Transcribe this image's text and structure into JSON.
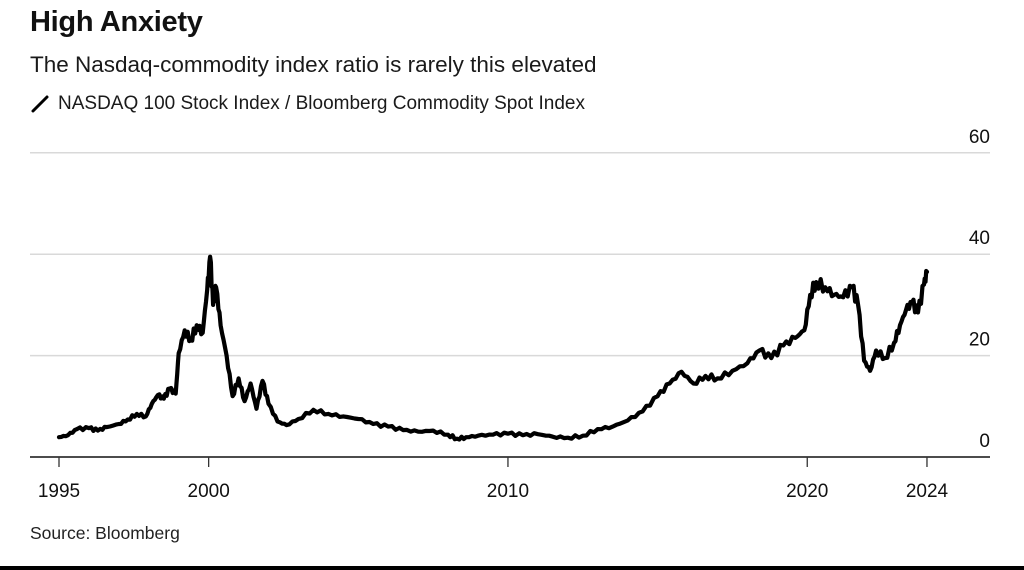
{
  "header": {
    "title": "High Anxiety",
    "subtitle": "The Nasdaq-commodity index ratio is rarely this elevated",
    "legend_icon": "diagonal-line-icon",
    "legend_label": "NASDAQ 100 Stock Index / Bloomberg Commodity Spot Index"
  },
  "footer": {
    "source": "Source: Bloomberg"
  },
  "colors": {
    "line": "#000000",
    "grid": "#d9d9d9",
    "axis": "#333333",
    "text": "#111111"
  },
  "chart_data": {
    "type": "line",
    "title": "High Anxiety",
    "subtitle": "The Nasdaq-commodity index ratio is rarely this elevated",
    "xlabel": "",
    "ylabel": "",
    "xlim": [
      1994.5,
      2026.2
    ],
    "ylim": [
      0,
      60
    ],
    "y_ticks": [
      0,
      20,
      40,
      60
    ],
    "y_tick_labels": [
      "0",
      "20",
      "40",
      "60"
    ],
    "y_axis_side": "right",
    "x_ticks": [
      1995,
      2000,
      2010,
      2020,
      2024
    ],
    "x_tick_labels": [
      "1995",
      "2000",
      "2010",
      "2020",
      "2024"
    ],
    "grid": true,
    "legend": "top-left",
    "series": [
      {
        "name": "NASDAQ 100 Stock Index / Bloomberg Commodity Spot Index",
        "x": [
          1995.0,
          1995.3,
          1995.6,
          1996.0,
          1996.3,
          1996.6,
          1997.0,
          1997.3,
          1997.6,
          1997.9,
          1998.1,
          1998.3,
          1998.5,
          1998.7,
          1998.9,
          1999.0,
          1999.2,
          1999.4,
          1999.6,
          1999.8,
          1999.95,
          2000.05,
          2000.15,
          2000.25,
          2000.4,
          2000.6,
          2000.8,
          2001.0,
          2001.2,
          2001.4,
          2001.6,
          2001.8,
          2002.0,
          2002.3,
          2002.6,
          2003.0,
          2003.5,
          2004.0,
          2004.5,
          2005.0,
          2005.5,
          2006.0,
          2006.5,
          2007.0,
          2007.5,
          2008.0,
          2008.3,
          2008.6,
          2009.0,
          2009.5,
          2010.0,
          2010.5,
          2011.0,
          2011.5,
          2012.0,
          2012.5,
          2013.0,
          2013.5,
          2014.0,
          2014.5,
          2015.0,
          2015.4,
          2015.8,
          2016.2,
          2016.6,
          2017.0,
          2017.5,
          2018.0,
          2018.4,
          2018.8,
          2019.2,
          2019.6,
          2019.9,
          2020.1,
          2020.3,
          2020.6,
          2020.9,
          2021.2,
          2021.5,
          2021.7,
          2021.9,
          2022.1,
          2022.3,
          2022.6,
          2022.9,
          2023.1,
          2023.3,
          2023.5,
          2023.7,
          2023.9,
          2024.0
        ],
        "values": [
          3.9,
          4.3,
          5.5,
          5.7,
          5.2,
          5.9,
          6.5,
          7.4,
          8.5,
          8.0,
          10.5,
          12.2,
          11.5,
          13.5,
          12.5,
          20.5,
          25.0,
          23.0,
          26.0,
          24.5,
          33.0,
          39.5,
          30.0,
          33.5,
          26.0,
          20.0,
          12.0,
          15.5,
          11.0,
          14.5,
          9.5,
          15.0,
          10.5,
          7.0,
          6.3,
          7.5,
          9.3,
          8.5,
          8.0,
          7.5,
          6.5,
          6.0,
          5.3,
          5.0,
          5.2,
          4.4,
          3.6,
          3.9,
          4.2,
          4.4,
          4.6,
          4.3,
          4.5,
          4.0,
          3.8,
          4.2,
          5.5,
          6.0,
          7.2,
          9.0,
          12.0,
          14.5,
          16.8,
          14.5,
          16.0,
          15.5,
          17.0,
          18.5,
          21.0,
          19.5,
          22.0,
          23.5,
          25.0,
          32.0,
          34.5,
          33.5,
          32.0,
          31.5,
          33.5,
          30.0,
          19.0,
          17.0,
          21.0,
          19.5,
          22.5,
          26.0,
          29.0,
          30.5,
          28.5,
          34.0,
          36.5
        ]
      }
    ]
  }
}
